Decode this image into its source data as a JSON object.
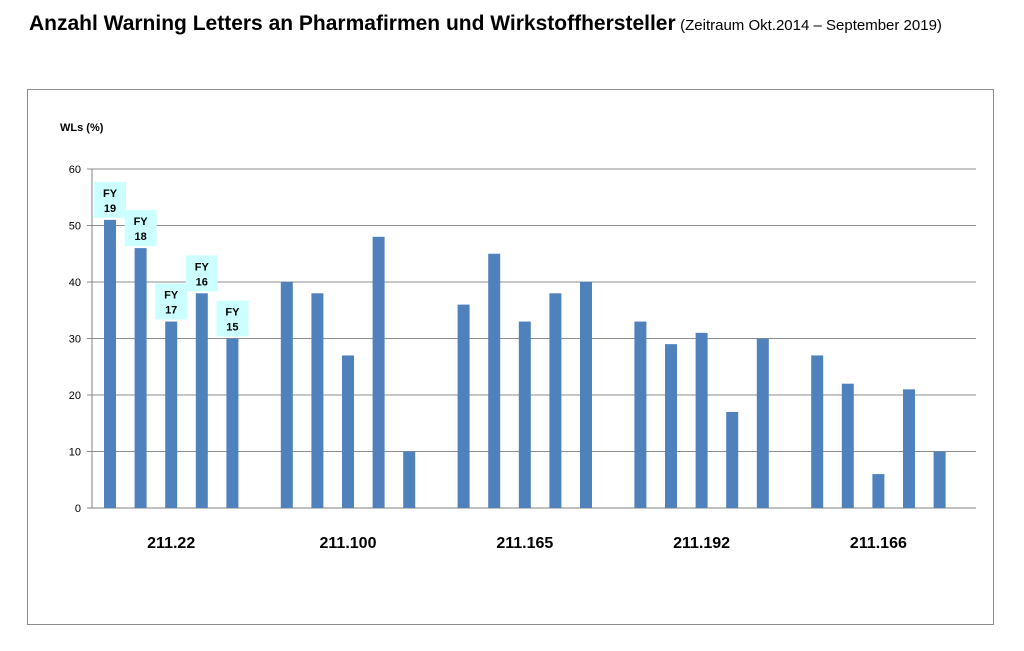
{
  "title": {
    "main": "Anzahl Warning Letters an Pharmafirmen und Wirkstoffhersteller",
    "subtitle": "(Zeitraum Okt.2014 – September 2019)"
  },
  "chart_data": {
    "type": "bar",
    "ylabel": "WLs (%)",
    "ylim": [
      0,
      60
    ],
    "yticks": [
      0,
      10,
      20,
      30,
      40,
      50,
      60
    ],
    "grid": true,
    "bar_color": "#4f81bd",
    "label_box_color": "#ccffff",
    "categories": [
      "211.22",
      "211.100",
      "211.165",
      "211.192",
      "211.166"
    ],
    "series": [
      {
        "name": "FY 19",
        "values": [
          51,
          40,
          36,
          33,
          27
        ]
      },
      {
        "name": "FY 18",
        "values": [
          46,
          38,
          45,
          29,
          22
        ]
      },
      {
        "name": "FY 17",
        "values": [
          33,
          27,
          33,
          31,
          6
        ]
      },
      {
        "name": "FY 16",
        "values": [
          38,
          48,
          38,
          17,
          21
        ]
      },
      {
        "name": "FY 15",
        "values": [
          30,
          10,
          40,
          30,
          10
        ]
      }
    ],
    "bar_labels": [
      {
        "series": 0,
        "category": 0,
        "line1": "FY",
        "line2": "19"
      },
      {
        "series": 1,
        "category": 0,
        "line1": "FY",
        "line2": "18"
      },
      {
        "series": 2,
        "category": 0,
        "line1": "FY",
        "line2": "17"
      },
      {
        "series": 3,
        "category": 0,
        "line1": "FY",
        "line2": "16"
      },
      {
        "series": 4,
        "category": 0,
        "line1": "FY",
        "line2": "15"
      }
    ]
  }
}
